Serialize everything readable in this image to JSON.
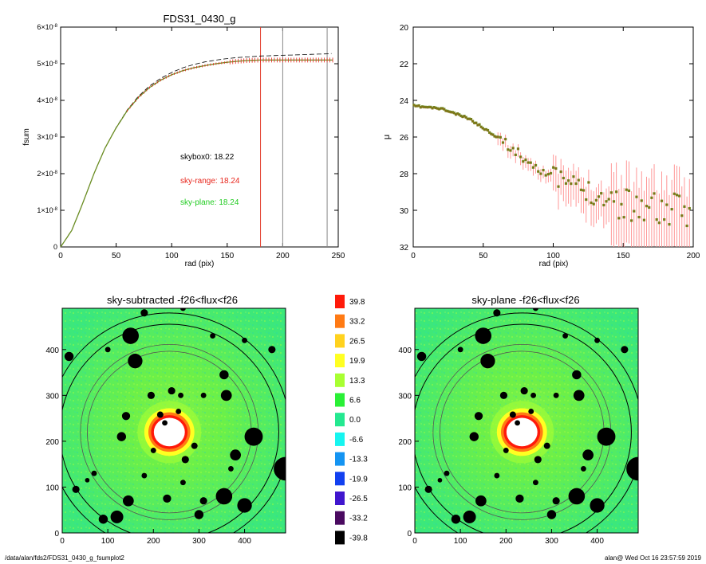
{
  "chart_data": [
    {
      "type": "line",
      "title": "FDS31_0430_g",
      "xlabel": "rad (pix)",
      "ylabel": "fsum",
      "xlim": [
        0,
        250
      ],
      "ylim": [
        0,
        6e-08
      ],
      "xticks": [
        "0",
        "50",
        "100",
        "150",
        "200",
        "250"
      ],
      "yticks": [
        {
          "mant": "0",
          "exp": ""
        },
        {
          "mant": "1×10",
          "exp": "-8"
        },
        {
          "mant": "2×10",
          "exp": "-8"
        },
        {
          "mant": "3×10",
          "exp": "-8"
        },
        {
          "mant": "4×10",
          "exp": "-8"
        },
        {
          "mant": "5×10",
          "exp": "-8"
        },
        {
          "mant": "6×10",
          "exp": "-8"
        }
      ],
      "curve_x": [
        0,
        10,
        20,
        30,
        40,
        50,
        60,
        70,
        80,
        90,
        100,
        110,
        120,
        130,
        140,
        150,
        160,
        170,
        180,
        190,
        200,
        210,
        220,
        230,
        240,
        245
      ],
      "curve_y": [
        0,
        4.5e-09,
        1.2e-08,
        2e-08,
        2.7e-08,
        3.25e-08,
        3.72e-08,
        4.08e-08,
        4.35e-08,
        4.55e-08,
        4.7e-08,
        4.81e-08,
        4.89e-08,
        4.95e-08,
        5e-08,
        5.04e-08,
        5.07e-08,
        5.09e-08,
        5.1e-08,
        5.1e-08,
        5.1e-08,
        5.1e-08,
        5.1e-08,
        5.1e-08,
        5.1e-08,
        5.1e-08
      ],
      "dashed_x": [
        0,
        10,
        20,
        30,
        40,
        50,
        60,
        70,
        80,
        90,
        100,
        110,
        120,
        130,
        140,
        150,
        160,
        170,
        180,
        190,
        200,
        210,
        220,
        230,
        240,
        245
      ],
      "dashed_y": [
        0,
        4.5e-09,
        1.2e-08,
        2e-08,
        2.7e-08,
        3.26e-08,
        3.74e-08,
        4.11e-08,
        4.39e-08,
        4.6e-08,
        4.76e-08,
        4.89e-08,
        4.98e-08,
        5.05e-08,
        5.1e-08,
        5.14e-08,
        5.17e-08,
        5.19e-08,
        5.21e-08,
        5.22e-08,
        5.23e-08,
        5.24e-08,
        5.25e-08,
        5.26e-08,
        5.27e-08,
        5.28e-08
      ],
      "vlines": [
        {
          "x": 180,
          "color": "#e23a2a"
        },
        {
          "x": 200,
          "color": "#888888"
        },
        {
          "x": 240,
          "color": "#888888"
        }
      ],
      "annotations": [
        {
          "text": "skybox0: 18.22",
          "color": "#000000"
        },
        {
          "text": "sky-range: 18.24",
          "color": "#e8261c"
        },
        {
          "text": "sky-plane: 18.24",
          "color": "#22cc22"
        }
      ]
    },
    {
      "type": "scatter",
      "xlabel": "rad (pix)",
      "ylabel": "μ",
      "xlim": [
        0,
        200
      ],
      "ylim": [
        32,
        20
      ],
      "xticks": [
        "0",
        "50",
        "100",
        "150",
        "200"
      ],
      "yticks": [
        "20",
        "22",
        "24",
        "26",
        "28",
        "30",
        "32"
      ],
      "profile_r": [
        0,
        20,
        40,
        60,
        80,
        100,
        120,
        140,
        160,
        180,
        200
      ],
      "profile_mu": [
        24.3,
        24.45,
        25.0,
        26.0,
        27.2,
        28.2,
        28.8,
        29.4,
        29.7,
        30.0,
        30.3
      ]
    },
    {
      "type": "heatmap",
      "title": "sky-subtracted -f26<flux<f26",
      "xlim": [
        0,
        490
      ],
      "ylim": [
        0,
        490
      ],
      "xticks": [
        "0",
        "100",
        "200",
        "300",
        "400"
      ],
      "yticks": [
        "0",
        "100",
        "200",
        "300",
        "400"
      ],
      "center": [
        235,
        220
      ],
      "ellipse_radii": [
        180,
        195,
        240,
        265
      ]
    },
    {
      "type": "heatmap",
      "title": "sky-plane -f26<flux<f26",
      "xlim": [
        0,
        490
      ],
      "ylim": [
        0,
        490
      ],
      "xticks": [
        "0",
        "100",
        "200",
        "300",
        "400"
      ],
      "yticks": [
        "0",
        "100",
        "200",
        "300",
        "400"
      ],
      "center": [
        235,
        220
      ],
      "ellipse_radii": [
        180,
        195,
        240,
        265
      ]
    }
  ],
  "colorbar": {
    "labels": [
      "39.8",
      "33.2",
      "26.5",
      "19.9",
      "13.3",
      "6.6",
      "0.0",
      "-6.6",
      "-13.3",
      "-19.9",
      "-26.5",
      "-33.2",
      "-39.8"
    ],
    "colors": [
      "#ff1a0a",
      "#ff7a14",
      "#ffd21e",
      "#ffff22",
      "#a8ff32",
      "#2af036",
      "#24e890",
      "#16f5f0",
      "#1494f2",
      "#1240f0",
      "#4016ce",
      "#4a0a60",
      "#000000"
    ]
  },
  "footer": {
    "path": "/data/alan/fds2/FDS31_0430_g_fsumplot2",
    "stamp": "alan@  Wed Oct 16 23:57:59 2019"
  }
}
